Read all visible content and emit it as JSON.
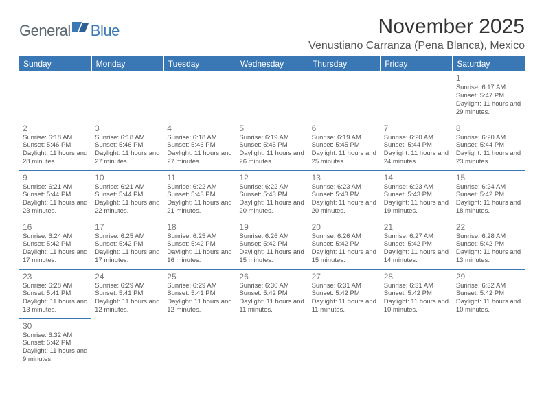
{
  "logo": {
    "part1": "General",
    "part2": "Blue"
  },
  "title": "November 2025",
  "location": "Venustiano Carranza (Pena Blanca), Mexico",
  "colors": {
    "header_bg": "#3a78b5",
    "header_fg": "#ffffff",
    "border": "#3a78b5",
    "daynum": "#777777",
    "info_text": "#555555",
    "logo_gray": "#5c6770",
    "logo_blue": "#3a78b5"
  },
  "weekdays": [
    "Sunday",
    "Monday",
    "Tuesday",
    "Wednesday",
    "Thursday",
    "Friday",
    "Saturday"
  ],
  "weeks": [
    [
      null,
      null,
      null,
      null,
      null,
      null,
      {
        "n": "1",
        "sr": "6:17 AM",
        "ss": "5:47 PM",
        "dl": "11 hours and 29 minutes."
      }
    ],
    [
      {
        "n": "2",
        "sr": "6:18 AM",
        "ss": "5:46 PM",
        "dl": "11 hours and 28 minutes."
      },
      {
        "n": "3",
        "sr": "6:18 AM",
        "ss": "5:46 PM",
        "dl": "11 hours and 27 minutes."
      },
      {
        "n": "4",
        "sr": "6:18 AM",
        "ss": "5:46 PM",
        "dl": "11 hours and 27 minutes."
      },
      {
        "n": "5",
        "sr": "6:19 AM",
        "ss": "5:45 PM",
        "dl": "11 hours and 26 minutes."
      },
      {
        "n": "6",
        "sr": "6:19 AM",
        "ss": "5:45 PM",
        "dl": "11 hours and 25 minutes."
      },
      {
        "n": "7",
        "sr": "6:20 AM",
        "ss": "5:44 PM",
        "dl": "11 hours and 24 minutes."
      },
      {
        "n": "8",
        "sr": "6:20 AM",
        "ss": "5:44 PM",
        "dl": "11 hours and 23 minutes."
      }
    ],
    [
      {
        "n": "9",
        "sr": "6:21 AM",
        "ss": "5:44 PM",
        "dl": "11 hours and 23 minutes."
      },
      {
        "n": "10",
        "sr": "6:21 AM",
        "ss": "5:44 PM",
        "dl": "11 hours and 22 minutes."
      },
      {
        "n": "11",
        "sr": "6:22 AM",
        "ss": "5:43 PM",
        "dl": "11 hours and 21 minutes."
      },
      {
        "n": "12",
        "sr": "6:22 AM",
        "ss": "5:43 PM",
        "dl": "11 hours and 20 minutes."
      },
      {
        "n": "13",
        "sr": "6:23 AM",
        "ss": "5:43 PM",
        "dl": "11 hours and 20 minutes."
      },
      {
        "n": "14",
        "sr": "6:23 AM",
        "ss": "5:43 PM",
        "dl": "11 hours and 19 minutes."
      },
      {
        "n": "15",
        "sr": "6:24 AM",
        "ss": "5:42 PM",
        "dl": "11 hours and 18 minutes."
      }
    ],
    [
      {
        "n": "16",
        "sr": "6:24 AM",
        "ss": "5:42 PM",
        "dl": "11 hours and 17 minutes."
      },
      {
        "n": "17",
        "sr": "6:25 AM",
        "ss": "5:42 PM",
        "dl": "11 hours and 17 minutes."
      },
      {
        "n": "18",
        "sr": "6:25 AM",
        "ss": "5:42 PM",
        "dl": "11 hours and 16 minutes."
      },
      {
        "n": "19",
        "sr": "6:26 AM",
        "ss": "5:42 PM",
        "dl": "11 hours and 15 minutes."
      },
      {
        "n": "20",
        "sr": "6:26 AM",
        "ss": "5:42 PM",
        "dl": "11 hours and 15 minutes."
      },
      {
        "n": "21",
        "sr": "6:27 AM",
        "ss": "5:42 PM",
        "dl": "11 hours and 14 minutes."
      },
      {
        "n": "22",
        "sr": "6:28 AM",
        "ss": "5:42 PM",
        "dl": "11 hours and 13 minutes."
      }
    ],
    [
      {
        "n": "23",
        "sr": "6:28 AM",
        "ss": "5:41 PM",
        "dl": "11 hours and 13 minutes."
      },
      {
        "n": "24",
        "sr": "6:29 AM",
        "ss": "5:41 PM",
        "dl": "11 hours and 12 minutes."
      },
      {
        "n": "25",
        "sr": "6:29 AM",
        "ss": "5:41 PM",
        "dl": "11 hours and 12 minutes."
      },
      {
        "n": "26",
        "sr": "6:30 AM",
        "ss": "5:42 PM",
        "dl": "11 hours and 11 minutes."
      },
      {
        "n": "27",
        "sr": "6:31 AM",
        "ss": "5:42 PM",
        "dl": "11 hours and 11 minutes."
      },
      {
        "n": "28",
        "sr": "6:31 AM",
        "ss": "5:42 PM",
        "dl": "11 hours and 10 minutes."
      },
      {
        "n": "29",
        "sr": "6:32 AM",
        "ss": "5:42 PM",
        "dl": "11 hours and 10 minutes."
      }
    ],
    [
      {
        "n": "30",
        "sr": "6:32 AM",
        "ss": "5:42 PM",
        "dl": "11 hours and 9 minutes."
      },
      null,
      null,
      null,
      null,
      null,
      null
    ]
  ],
  "labels": {
    "sunrise": "Sunrise: ",
    "sunset": "Sunset: ",
    "daylight": "Daylight: "
  }
}
